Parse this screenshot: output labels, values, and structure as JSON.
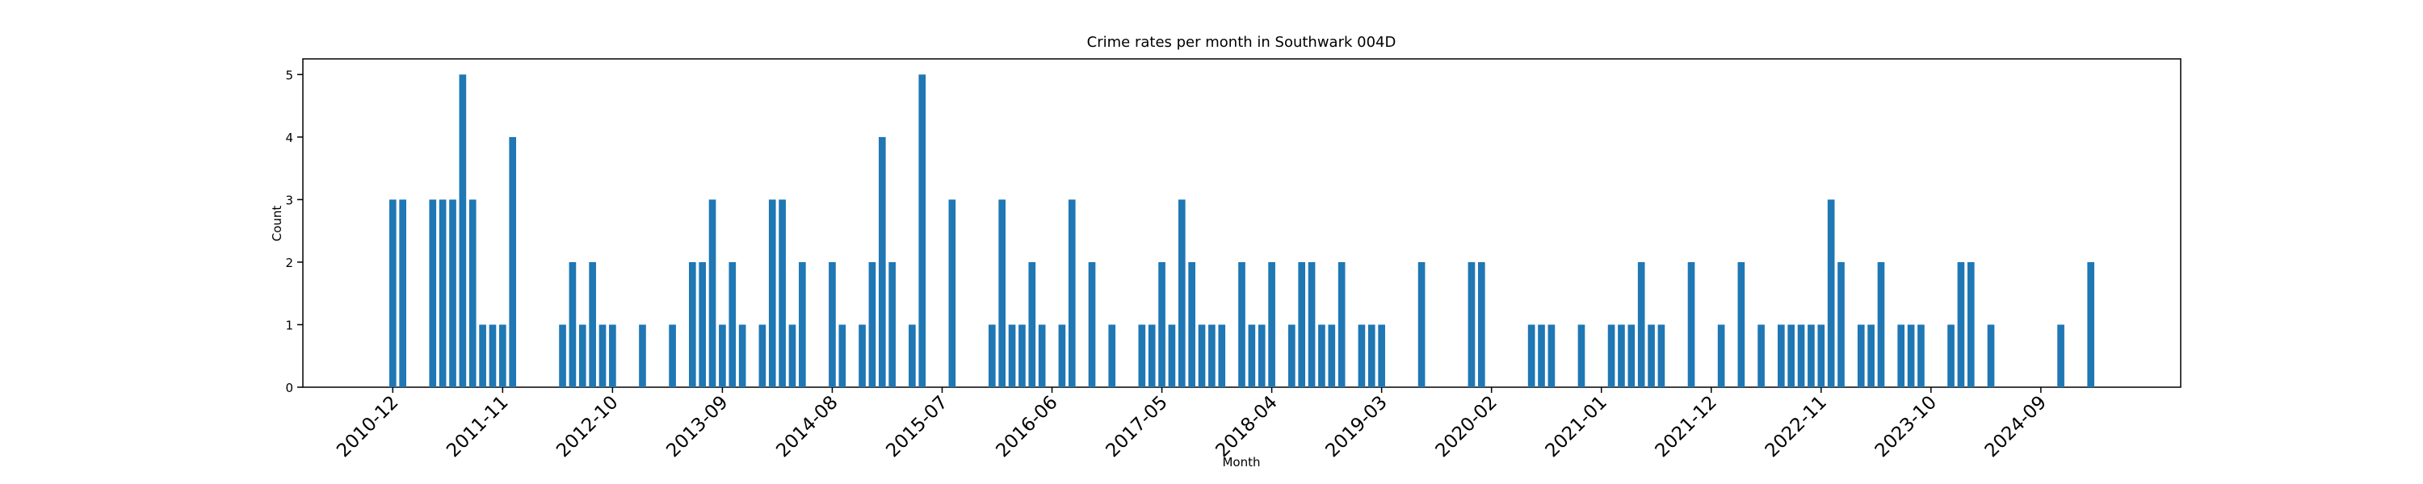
{
  "chart_data": {
    "type": "bar",
    "title": "Crime rates per month in Southwark 004D",
    "x_label": "Month",
    "y_label": "Count",
    "color": "#1f77b4",
    "grid": false,
    "x": [
      "2010-12",
      "2011-01",
      "2011-04",
      "2011-05",
      "2011-06",
      "2011-07",
      "2011-08",
      "2011-09",
      "2011-10",
      "2011-11",
      "2011-12",
      "2012-05",
      "2012-06",
      "2012-07",
      "2012-08",
      "2012-09",
      "2012-10",
      "2013-01",
      "2013-04",
      "2013-06",
      "2013-07",
      "2013-08",
      "2013-09",
      "2013-10",
      "2013-11",
      "2014-01",
      "2014-02",
      "2014-03",
      "2014-04",
      "2014-05",
      "2014-08",
      "2014-09",
      "2014-11",
      "2014-12",
      "2015-01",
      "2015-02",
      "2015-04",
      "2015-05",
      "2015-08",
      "2015-12",
      "2016-01",
      "2016-02",
      "2016-03",
      "2016-04",
      "2016-05",
      "2016-07",
      "2016-08",
      "2016-10",
      "2016-12",
      "2017-03",
      "2017-04",
      "2017-05",
      "2017-06",
      "2017-07",
      "2017-08",
      "2017-09",
      "2017-10",
      "2017-11",
      "2018-01",
      "2018-02",
      "2018-03",
      "2018-04",
      "2018-06",
      "2018-07",
      "2018-08",
      "2018-09",
      "2018-10",
      "2018-11",
      "2019-01",
      "2019-02",
      "2019-03",
      "2019-07",
      "2019-12",
      "2020-01",
      "2020-06",
      "2020-07",
      "2020-08",
      "2020-11",
      "2021-02",
      "2021-03",
      "2021-04",
      "2021-05",
      "2021-06",
      "2021-07",
      "2021-10",
      "2022-01",
      "2022-03",
      "2022-05",
      "2022-07",
      "2022-08",
      "2022-09",
      "2022-10",
      "2022-11",
      "2022-12",
      "2023-01",
      "2023-03",
      "2023-04",
      "2023-05",
      "2023-07",
      "2023-08",
      "2023-09",
      "2023-12",
      "2024-01",
      "2024-02",
      "2024-04",
      "2024-11",
      "2025-02"
    ],
    "values": [
      3,
      3,
      3,
      3,
      3,
      5,
      3,
      1,
      1,
      1,
      4,
      1,
      2,
      1,
      2,
      1,
      1,
      1,
      1,
      2,
      2,
      3,
      1,
      2,
      1,
      1,
      3,
      3,
      1,
      2,
      2,
      1,
      1,
      2,
      4,
      2,
      1,
      5,
      3,
      1,
      3,
      1,
      1,
      2,
      1,
      1,
      3,
      2,
      1,
      1,
      1,
      2,
      1,
      3,
      2,
      1,
      1,
      1,
      2,
      1,
      1,
      2,
      1,
      2,
      2,
      1,
      1,
      2,
      1,
      1,
      1,
      2,
      2,
      2,
      1,
      1,
      1,
      1,
      1,
      1,
      1,
      2,
      1,
      1,
      2,
      1,
      2,
      1,
      1,
      1,
      1,
      1,
      1,
      3,
      2,
      1,
      1,
      2,
      1,
      1,
      1,
      1,
      2,
      2,
      1,
      1,
      2
    ],
    "xlim": [
      "2010-03",
      "2025-11"
    ],
    "xticks": [
      "2010-12",
      "2011-11",
      "2012-10",
      "2013-09",
      "2014-08",
      "2015-07",
      "2016-06",
      "2017-05",
      "2018-04",
      "2019-03",
      "2020-02",
      "2021-01",
      "2021-12",
      "2022-11",
      "2023-10",
      "2024-09"
    ],
    "ylim": [
      0,
      5.25
    ],
    "yticks": [
      0,
      1,
      2,
      3,
      4,
      5
    ]
  }
}
